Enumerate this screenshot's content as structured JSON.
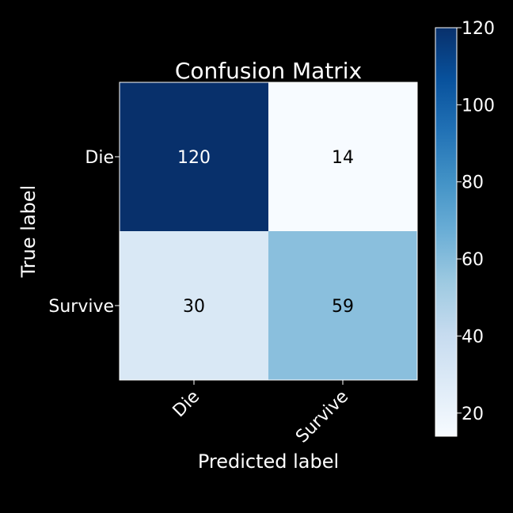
{
  "chart_data": {
    "type": "heatmap",
    "title": "Confusion Matrix",
    "xlabel": "Predicted label",
    "ylabel": "True label",
    "x_categories": [
      "Die",
      "Survive"
    ],
    "y_categories": [
      "Die",
      "Survive"
    ],
    "values": [
      [
        120,
        14
      ],
      [
        30,
        59
      ]
    ],
    "colormap": "Blues",
    "colorbar": {
      "min": 14,
      "max": 120,
      "ticks": [
        20,
        40,
        60,
        80,
        100,
        120
      ],
      "tick_labels": [
        "20",
        "40",
        "60",
        "80",
        "100",
        "120"
      ]
    },
    "colors": {
      "background": "#000000",
      "text": "#ffffff",
      "cell_dark_text": "#000000"
    }
  }
}
